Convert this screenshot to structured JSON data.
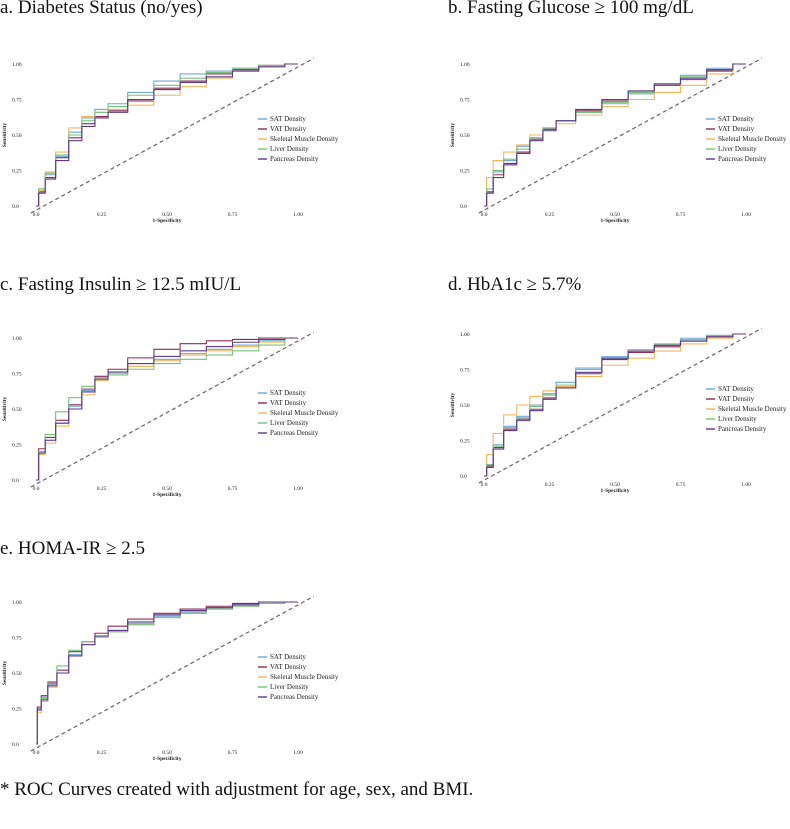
{
  "footnote": "* ROC Curves created with adjustment for age, sex, and BMI.",
  "series_styles": [
    {
      "name": "SAT Density",
      "color": "#6ea6d9"
    },
    {
      "name": "VAT Density",
      "color": "#8b2c54"
    },
    {
      "name": "Skeletal Muscle Density",
      "color": "#f2b75e"
    },
    {
      "name": "Liver Density",
      "color": "#78c07a"
    },
    {
      "name": "Pancreas Density",
      "color": "#5a3a8a"
    }
  ],
  "chart_data": [
    {
      "type": "line",
      "title": "a. Diabetes Status (no/yes)",
      "xlabel": "1-Specificity",
      "ylabel": "Sensitivity",
      "xlim": [
        0,
        1
      ],
      "ylim": [
        0,
        1
      ],
      "xticks": [
        "0.0",
        "0.25",
        "0.50",
        "0.75",
        "1.00"
      ],
      "yticks": [
        "0.0",
        "0.25",
        "0.50",
        "0.75",
        "1.00"
      ],
      "legend": "right",
      "reference_line": "diagonal",
      "series": [
        {
          "name": "SAT Density",
          "x": [
            0,
            0.02,
            0.05,
            0.1,
            0.15,
            0.2,
            0.25,
            0.3,
            0.4,
            0.5,
            0.6,
            0.7,
            0.8,
            0.9,
            1.0
          ],
          "y": [
            0,
            0.12,
            0.22,
            0.35,
            0.52,
            0.62,
            0.68,
            0.72,
            0.8,
            0.88,
            0.93,
            0.95,
            0.97,
            0.99,
            1.0
          ]
        },
        {
          "name": "VAT Density",
          "x": [
            0,
            0.02,
            0.05,
            0.1,
            0.15,
            0.2,
            0.25,
            0.3,
            0.4,
            0.5,
            0.6,
            0.7,
            0.8,
            0.9,
            1.0
          ],
          "y": [
            0,
            0.1,
            0.2,
            0.34,
            0.48,
            0.58,
            0.63,
            0.67,
            0.74,
            0.83,
            0.88,
            0.93,
            0.96,
            0.99,
            1.0
          ]
        },
        {
          "name": "Skeletal Muscle Density",
          "x": [
            0,
            0.02,
            0.05,
            0.1,
            0.15,
            0.2,
            0.25,
            0.3,
            0.4,
            0.5,
            0.6,
            0.7,
            0.8,
            0.9,
            1.0
          ],
          "y": [
            0,
            0.11,
            0.24,
            0.38,
            0.55,
            0.63,
            0.66,
            0.68,
            0.71,
            0.78,
            0.84,
            0.9,
            0.95,
            0.98,
            1.0
          ]
        },
        {
          "name": "Liver Density",
          "x": [
            0,
            0.02,
            0.05,
            0.1,
            0.15,
            0.2,
            0.25,
            0.3,
            0.4,
            0.5,
            0.6,
            0.7,
            0.8,
            0.9,
            1.0
          ],
          "y": [
            0,
            0.12,
            0.23,
            0.36,
            0.5,
            0.6,
            0.66,
            0.7,
            0.78,
            0.85,
            0.9,
            0.94,
            0.97,
            0.99,
            1.0
          ]
        },
        {
          "name": "Pancreas Density",
          "x": [
            0,
            0.02,
            0.05,
            0.1,
            0.15,
            0.2,
            0.25,
            0.3,
            0.4,
            0.5,
            0.6,
            0.7,
            0.8,
            0.9,
            1.0
          ],
          "y": [
            0,
            0.09,
            0.19,
            0.32,
            0.46,
            0.56,
            0.62,
            0.66,
            0.75,
            0.82,
            0.87,
            0.91,
            0.95,
            0.98,
            1.0
          ]
        }
      ]
    },
    {
      "type": "line",
      "title": "b. Fasting Glucose ≥ 100 mg/dL",
      "xlabel": "1-Specificity",
      "ylabel": "Sensitivity",
      "xlim": [
        0,
        1
      ],
      "ylim": [
        0,
        1
      ],
      "xticks": [
        "0.0",
        "0.25",
        "0.50",
        "0.75",
        "1.00"
      ],
      "yticks": [
        "0.0",
        "0.25",
        "0.50",
        "0.75",
        "1.00"
      ],
      "legend": "right",
      "reference_line": "diagonal",
      "series": [
        {
          "name": "SAT Density",
          "x": [
            0,
            0.02,
            0.05,
            0.1,
            0.15,
            0.2,
            0.25,
            0.3,
            0.4,
            0.5,
            0.6,
            0.7,
            0.8,
            0.9,
            1.0
          ],
          "y": [
            0,
            0.12,
            0.24,
            0.32,
            0.42,
            0.48,
            0.54,
            0.6,
            0.66,
            0.72,
            0.79,
            0.86,
            0.92,
            0.97,
            1.0
          ]
        },
        {
          "name": "VAT Density",
          "x": [
            0,
            0.02,
            0.05,
            0.1,
            0.15,
            0.2,
            0.25,
            0.3,
            0.4,
            0.5,
            0.6,
            0.7,
            0.8,
            0.9,
            1.0
          ],
          "y": [
            0,
            0.1,
            0.22,
            0.3,
            0.38,
            0.47,
            0.54,
            0.6,
            0.67,
            0.74,
            0.8,
            0.85,
            0.89,
            0.95,
            1.0
          ]
        },
        {
          "name": "Skeletal Muscle Density",
          "x": [
            0,
            0.02,
            0.05,
            0.1,
            0.15,
            0.2,
            0.25,
            0.3,
            0.4,
            0.5,
            0.6,
            0.7,
            0.8,
            0.9,
            1.0
          ],
          "y": [
            0,
            0.2,
            0.32,
            0.38,
            0.43,
            0.5,
            0.55,
            0.58,
            0.64,
            0.7,
            0.75,
            0.8,
            0.85,
            0.93,
            1.0
          ]
        },
        {
          "name": "Liver Density",
          "x": [
            0,
            0.02,
            0.05,
            0.1,
            0.15,
            0.2,
            0.25,
            0.3,
            0.4,
            0.5,
            0.6,
            0.7,
            0.8,
            0.9,
            1.0
          ],
          "y": [
            0,
            0.12,
            0.25,
            0.33,
            0.4,
            0.48,
            0.55,
            0.6,
            0.66,
            0.73,
            0.8,
            0.86,
            0.91,
            0.96,
            1.0
          ]
        },
        {
          "name": "Pancreas Density",
          "x": [
            0,
            0.02,
            0.05,
            0.1,
            0.15,
            0.2,
            0.25,
            0.3,
            0.4,
            0.5,
            0.6,
            0.7,
            0.8,
            0.9,
            1.0
          ],
          "y": [
            0,
            0.09,
            0.2,
            0.29,
            0.37,
            0.46,
            0.53,
            0.6,
            0.68,
            0.75,
            0.81,
            0.86,
            0.9,
            0.96,
            1.0
          ]
        }
      ]
    },
    {
      "type": "line",
      "title": "c. Fasting Insulin ≥ 12.5 mIU/L",
      "xlabel": "1-Specificity",
      "ylabel": "Sensitivity",
      "xlim": [
        0,
        1
      ],
      "ylim": [
        0,
        1
      ],
      "xticks": [
        "0.0",
        "0.25",
        "0.50",
        "0.75",
        "1.00"
      ],
      "yticks": [
        "0.0",
        "0.25",
        "0.50",
        "0.75",
        "1.00"
      ],
      "legend": "right",
      "reference_line": "diagonal",
      "series": [
        {
          "name": "SAT Density",
          "x": [
            0,
            0.02,
            0.05,
            0.1,
            0.15,
            0.2,
            0.25,
            0.3,
            0.4,
            0.5,
            0.6,
            0.7,
            0.8,
            0.9,
            1.0
          ],
          "y": [
            0,
            0.2,
            0.28,
            0.4,
            0.52,
            0.63,
            0.72,
            0.76,
            0.8,
            0.85,
            0.89,
            0.92,
            0.95,
            0.98,
            1.0
          ]
        },
        {
          "name": "VAT Density",
          "x": [
            0,
            0.02,
            0.05,
            0.1,
            0.15,
            0.2,
            0.25,
            0.3,
            0.4,
            0.5,
            0.6,
            0.7,
            0.8,
            0.9,
            1.0
          ],
          "y": [
            0,
            0.22,
            0.3,
            0.42,
            0.53,
            0.64,
            0.73,
            0.78,
            0.86,
            0.92,
            0.96,
            0.98,
            0.99,
            1.0,
            1.0
          ]
        },
        {
          "name": "Skeletal Muscle Density",
          "x": [
            0,
            0.02,
            0.05,
            0.1,
            0.15,
            0.2,
            0.25,
            0.3,
            0.4,
            0.5,
            0.6,
            0.7,
            0.8,
            0.9,
            1.0
          ],
          "y": [
            0,
            0.18,
            0.26,
            0.38,
            0.5,
            0.6,
            0.7,
            0.75,
            0.8,
            0.84,
            0.88,
            0.91,
            0.94,
            0.97,
            1.0
          ]
        },
        {
          "name": "Liver Density",
          "x": [
            0,
            0.02,
            0.05,
            0.1,
            0.15,
            0.2,
            0.25,
            0.3,
            0.4,
            0.5,
            0.6,
            0.7,
            0.8,
            0.9,
            1.0
          ],
          "y": [
            0,
            0.2,
            0.32,
            0.48,
            0.58,
            0.66,
            0.72,
            0.74,
            0.78,
            0.82,
            0.85,
            0.88,
            0.91,
            0.95,
            1.0
          ]
        },
        {
          "name": "Pancreas Density",
          "x": [
            0,
            0.02,
            0.05,
            0.1,
            0.15,
            0.2,
            0.25,
            0.3,
            0.4,
            0.5,
            0.6,
            0.7,
            0.8,
            0.9,
            1.0
          ],
          "y": [
            0,
            0.19,
            0.28,
            0.4,
            0.5,
            0.62,
            0.71,
            0.76,
            0.82,
            0.87,
            0.91,
            0.94,
            0.97,
            0.99,
            1.0
          ]
        }
      ]
    },
    {
      "type": "line",
      "title": "d. HbA1c ≥ 5.7%",
      "xlabel": "1-Specificity",
      "ylabel": "Sensitivity",
      "xlim": [
        0,
        1
      ],
      "ylim": [
        0,
        1
      ],
      "xticks": [
        "0.0",
        "0.25",
        "0.50",
        "0.75",
        "1.00"
      ],
      "yticks": [
        "0.0",
        "0.25",
        "0.50",
        "0.75",
        "1.00"
      ],
      "legend": "right",
      "reference_line": "diagonal",
      "series": [
        {
          "name": "SAT Density",
          "x": [
            0,
            0.02,
            0.05,
            0.1,
            0.15,
            0.2,
            0.25,
            0.3,
            0.4,
            0.5,
            0.6,
            0.7,
            0.8,
            0.9,
            1.0
          ],
          "y": [
            0,
            0.08,
            0.22,
            0.35,
            0.42,
            0.5,
            0.58,
            0.66,
            0.76,
            0.84,
            0.88,
            0.92,
            0.97,
            0.99,
            1.0
          ]
        },
        {
          "name": "VAT Density",
          "x": [
            0,
            0.02,
            0.05,
            0.1,
            0.15,
            0.2,
            0.25,
            0.3,
            0.4,
            0.5,
            0.6,
            0.7,
            0.8,
            0.9,
            1.0
          ],
          "y": [
            0,
            0.07,
            0.2,
            0.33,
            0.4,
            0.47,
            0.55,
            0.62,
            0.72,
            0.82,
            0.87,
            0.91,
            0.95,
            0.98,
            1.0
          ]
        },
        {
          "name": "Skeletal Muscle Density",
          "x": [
            0,
            0.02,
            0.05,
            0.1,
            0.15,
            0.2,
            0.25,
            0.3,
            0.4,
            0.5,
            0.6,
            0.7,
            0.8,
            0.9,
            1.0
          ],
          "y": [
            0,
            0.15,
            0.3,
            0.43,
            0.5,
            0.56,
            0.6,
            0.63,
            0.7,
            0.78,
            0.83,
            0.88,
            0.93,
            0.97,
            1.0
          ]
        },
        {
          "name": "Liver Density",
          "x": [
            0,
            0.02,
            0.05,
            0.1,
            0.15,
            0.2,
            0.25,
            0.3,
            0.4,
            0.5,
            0.6,
            0.7,
            0.8,
            0.9,
            1.0
          ],
          "y": [
            0,
            0.08,
            0.21,
            0.34,
            0.41,
            0.49,
            0.57,
            0.64,
            0.75,
            0.83,
            0.89,
            0.93,
            0.96,
            0.99,
            1.0
          ]
        },
        {
          "name": "Pancreas Density",
          "x": [
            0,
            0.02,
            0.05,
            0.1,
            0.15,
            0.2,
            0.25,
            0.3,
            0.4,
            0.5,
            0.6,
            0.7,
            0.8,
            0.9,
            1.0
          ],
          "y": [
            0,
            0.06,
            0.19,
            0.32,
            0.39,
            0.46,
            0.54,
            0.62,
            0.73,
            0.83,
            0.88,
            0.92,
            0.95,
            0.98,
            1.0
          ]
        }
      ]
    },
    {
      "type": "line",
      "title": "e. HOMA-IR ≥ 2.5",
      "xlabel": "1-Specificity",
      "ylabel": "Sensitivity",
      "xlim": [
        0,
        1
      ],
      "ylim": [
        0,
        1
      ],
      "xticks": [
        "0.0",
        "0.25",
        "0.50",
        "0.75",
        "1.00"
      ],
      "yticks": [
        "0.0",
        "0.25",
        "0.50",
        "0.75",
        "1.00"
      ],
      "legend": "right",
      "reference_line": "diagonal",
      "series": [
        {
          "name": "SAT Density",
          "x": [
            0,
            0.01,
            0.03,
            0.06,
            0.1,
            0.15,
            0.2,
            0.25,
            0.3,
            0.4,
            0.5,
            0.6,
            0.7,
            0.8,
            0.9,
            1.0
          ],
          "y": [
            0,
            0.25,
            0.33,
            0.42,
            0.5,
            0.63,
            0.7,
            0.76,
            0.8,
            0.85,
            0.9,
            0.93,
            0.96,
            0.98,
            0.99,
            1.0
          ]
        },
        {
          "name": "VAT Density",
          "x": [
            0,
            0.01,
            0.03,
            0.06,
            0.1,
            0.15,
            0.2,
            0.25,
            0.3,
            0.4,
            0.5,
            0.6,
            0.7,
            0.8,
            0.9,
            1.0
          ],
          "y": [
            0,
            0.26,
            0.34,
            0.43,
            0.52,
            0.65,
            0.72,
            0.78,
            0.83,
            0.88,
            0.92,
            0.95,
            0.97,
            0.99,
            1.0,
            1.0
          ]
        },
        {
          "name": "Skeletal Muscle Density",
          "x": [
            0,
            0.01,
            0.03,
            0.06,
            0.1,
            0.15,
            0.2,
            0.25,
            0.3,
            0.4,
            0.5,
            0.6,
            0.7,
            0.8,
            0.9,
            1.0
          ],
          "y": [
            0,
            0.22,
            0.3,
            0.4,
            0.5,
            0.62,
            0.7,
            0.75,
            0.79,
            0.84,
            0.89,
            0.92,
            0.95,
            0.97,
            0.99,
            1.0
          ]
        },
        {
          "name": "Liver Density",
          "x": [
            0,
            0.01,
            0.03,
            0.06,
            0.1,
            0.15,
            0.2,
            0.25,
            0.3,
            0.4,
            0.5,
            0.6,
            0.7,
            0.8,
            0.9,
            1.0
          ],
          "y": [
            0,
            0.24,
            0.32,
            0.44,
            0.55,
            0.66,
            0.72,
            0.76,
            0.79,
            0.84,
            0.89,
            0.92,
            0.95,
            0.97,
            0.99,
            1.0
          ]
        },
        {
          "name": "Pancreas Density",
          "x": [
            0,
            0.01,
            0.03,
            0.06,
            0.1,
            0.15,
            0.2,
            0.25,
            0.3,
            0.4,
            0.5,
            0.6,
            0.7,
            0.8,
            0.9,
            1.0
          ],
          "y": [
            0,
            0.24,
            0.31,
            0.41,
            0.5,
            0.62,
            0.7,
            0.76,
            0.8,
            0.86,
            0.91,
            0.94,
            0.96,
            0.98,
            1.0,
            1.0
          ]
        }
      ]
    }
  ]
}
